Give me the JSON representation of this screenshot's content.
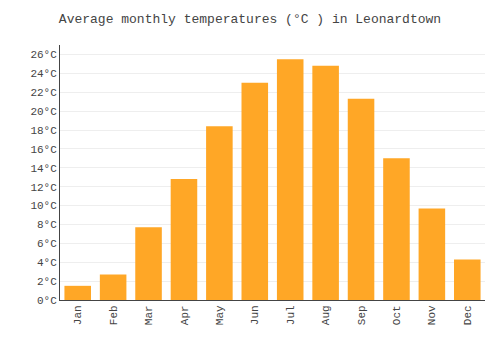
{
  "chart_data": {
    "type": "bar",
    "title": "Average monthly temperatures (°C ) in Leonardtown",
    "categories": [
      "Jan",
      "Feb",
      "Mar",
      "Apr",
      "May",
      "Jun",
      "Jul",
      "Aug",
      "Sep",
      "Oct",
      "Nov",
      "Dec"
    ],
    "values": [
      1.5,
      2.7,
      7.7,
      12.8,
      18.4,
      23.0,
      25.5,
      24.8,
      21.3,
      15.0,
      9.7,
      4.3
    ],
    "color": "#FFA726",
    "ylim": [
      0,
      27
    ],
    "yticks": [
      {
        "value": 0,
        "label": "0°C"
      },
      {
        "value": 2,
        "label": "2°C"
      },
      {
        "value": 4,
        "label": "4°C"
      },
      {
        "value": 6,
        "label": "6°C"
      },
      {
        "value": 8,
        "label": "8°C"
      },
      {
        "value": 10,
        "label": "10°C"
      },
      {
        "value": 12,
        "label": "12°C"
      },
      {
        "value": 14,
        "label": "14°C"
      },
      {
        "value": 16,
        "label": "16°C"
      },
      {
        "value": 18,
        "label": "18°C"
      },
      {
        "value": 20,
        "label": "20°C"
      },
      {
        "value": 22,
        "label": "22°C"
      },
      {
        "value": 24,
        "label": "24°C"
      },
      {
        "value": 26,
        "label": "26°C"
      }
    ],
    "grid": true
  }
}
